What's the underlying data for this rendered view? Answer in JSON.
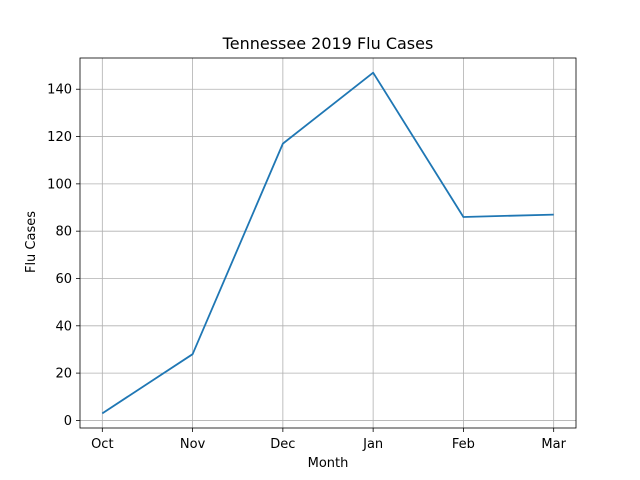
{
  "chart_data": {
    "type": "line",
    "title": "Tennessee 2019 Flu Cases",
    "xlabel": "Month",
    "ylabel": "Flu Cases",
    "categories": [
      "Oct",
      "Nov",
      "Dec",
      "Jan",
      "Feb",
      "Mar"
    ],
    "series": [
      {
        "values": [
          3,
          28,
          117,
          147,
          86,
          87
        ],
        "color": "#1f77b4"
      }
    ],
    "ylim": [
      -3.2,
      153.2
    ],
    "yticks": [
      0,
      20,
      40,
      60,
      80,
      100,
      120,
      140
    ],
    "grid": true,
    "legend": "none"
  }
}
